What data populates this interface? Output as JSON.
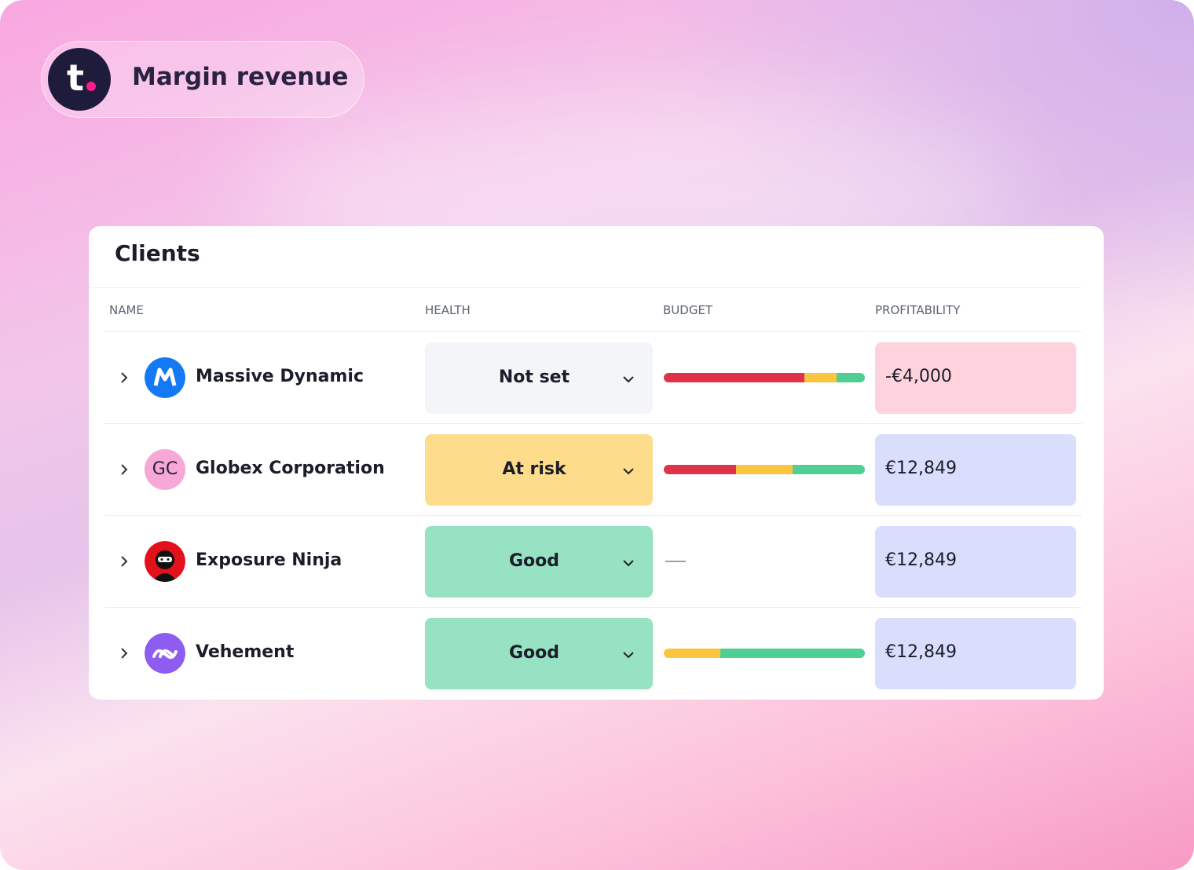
{
  "header": {
    "logo": "t",
    "title": "Margin revenue"
  },
  "table": {
    "title": "Clients",
    "columns": [
      "NAME",
      "HEALTH",
      "BUDGET",
      "PROFITABILITY"
    ],
    "rows": [
      {
        "name": "Massive Dynamic",
        "health": "Not set",
        "health_color": "#f4f5f9",
        "budget": [
          {
            "value": 70,
            "color": "#e0334a"
          },
          {
            "value": 16,
            "color": "#fbc540"
          },
          {
            "value": 14,
            "color": "#4fcf93"
          }
        ],
        "profitability": "-€4,000",
        "profit_color": "#fed3de"
      },
      {
        "name": "Globex Corporation",
        "initials": "GC",
        "health": "At risk",
        "health_color": "#fddc8c",
        "budget": [
          {
            "value": 36,
            "color": "#e0334a"
          },
          {
            "value": 28,
            "color": "#fbc540"
          },
          {
            "value": 36,
            "color": "#4fcf93"
          }
        ],
        "profitability": "€12,849",
        "profit_color": "#d9defc"
      },
      {
        "name": "Exposure Ninja",
        "health": "Good",
        "health_color": "#96e2c2",
        "budget": null,
        "profitability": "€12,849",
        "profit_color": "#d9defc"
      },
      {
        "name": "Vehement",
        "health": "Good",
        "health_color": "#96e2c2",
        "budget": [
          {
            "value": 28,
            "color": "#fbc540"
          },
          {
            "value": 72,
            "color": "#4fcf93"
          }
        ],
        "profitability": "€12,849",
        "profit_color": "#d9defc"
      }
    ]
  }
}
